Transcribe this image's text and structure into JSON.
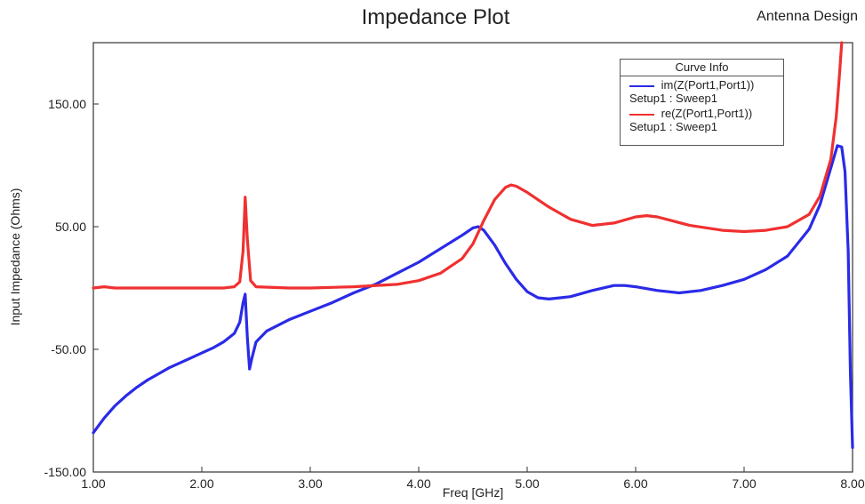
{
  "chart_data": {
    "type": "line",
    "title": "Impedance Plot",
    "subtitle": "Antenna Design",
    "xlabel": "Freq [GHz]",
    "ylabel": "Input Impedance (Ohms)",
    "xlim": [
      1.0,
      8.0
    ],
    "ylim": [
      -150,
      200
    ],
    "xticks": [
      "1.00",
      "2.00",
      "3.00",
      "4.00",
      "5.00",
      "6.00",
      "7.00",
      "8.00"
    ],
    "yticks": [
      "-150.00",
      "-50.00",
      "50.00",
      "150.00"
    ],
    "grid": false,
    "legend": {
      "title": "Curve Info",
      "placement": "top-right"
    },
    "series": [
      {
        "name": "im(Z(Port1,Port1))",
        "setup": "Setup1 : Sweep1",
        "color": "#2a2ae8",
        "points": [
          [
            1.0,
            -118
          ],
          [
            1.1,
            -106
          ],
          [
            1.2,
            -96
          ],
          [
            1.3,
            -88
          ],
          [
            1.4,
            -81
          ],
          [
            1.5,
            -75
          ],
          [
            1.6,
            -70
          ],
          [
            1.7,
            -65
          ],
          [
            1.8,
            -61
          ],
          [
            1.9,
            -57
          ],
          [
            2.0,
            -53
          ],
          [
            2.1,
            -49
          ],
          [
            2.2,
            -44
          ],
          [
            2.3,
            -37
          ],
          [
            2.35,
            -28
          ],
          [
            2.38,
            -12
          ],
          [
            2.4,
            -5
          ],
          [
            2.42,
            -40
          ],
          [
            2.44,
            -66
          ],
          [
            2.46,
            -58
          ],
          [
            2.5,
            -44
          ],
          [
            2.6,
            -35
          ],
          [
            2.8,
            -26
          ],
          [
            3.0,
            -19
          ],
          [
            3.2,
            -12
          ],
          [
            3.4,
            -4
          ],
          [
            3.6,
            3
          ],
          [
            3.8,
            12
          ],
          [
            4.0,
            21
          ],
          [
            4.2,
            32
          ],
          [
            4.4,
            43
          ],
          [
            4.5,
            49
          ],
          [
            4.55,
            50
          ],
          [
            4.6,
            47
          ],
          [
            4.7,
            35
          ],
          [
            4.8,
            20
          ],
          [
            4.9,
            7
          ],
          [
            5.0,
            -3
          ],
          [
            5.1,
            -8
          ],
          [
            5.2,
            -9
          ],
          [
            5.4,
            -7
          ],
          [
            5.6,
            -2
          ],
          [
            5.8,
            2
          ],
          [
            5.9,
            2
          ],
          [
            6.0,
            1
          ],
          [
            6.2,
            -2
          ],
          [
            6.4,
            -4
          ],
          [
            6.6,
            -2
          ],
          [
            6.8,
            2
          ],
          [
            7.0,
            7
          ],
          [
            7.2,
            15
          ],
          [
            7.4,
            26
          ],
          [
            7.6,
            48
          ],
          [
            7.7,
            68
          ],
          [
            7.8,
            98
          ],
          [
            7.86,
            116
          ],
          [
            7.9,
            115
          ],
          [
            7.93,
            95
          ],
          [
            7.96,
            30
          ],
          [
            7.98,
            -70
          ],
          [
            8.0,
            -130
          ]
        ]
      },
      {
        "name": "re(Z(Port1,Port1))",
        "setup": "Setup1 : Sweep1",
        "color": "#f03030",
        "points": [
          [
            1.0,
            0
          ],
          [
            1.1,
            1
          ],
          [
            1.2,
            0
          ],
          [
            1.4,
            0
          ],
          [
            1.6,
            0
          ],
          [
            1.8,
            0
          ],
          [
            2.0,
            0
          ],
          [
            2.2,
            0
          ],
          [
            2.3,
            1
          ],
          [
            2.35,
            5
          ],
          [
            2.38,
            30
          ],
          [
            2.4,
            74
          ],
          [
            2.42,
            40
          ],
          [
            2.45,
            6
          ],
          [
            2.5,
            1
          ],
          [
            2.8,
            0
          ],
          [
            3.0,
            0
          ],
          [
            3.4,
            1
          ],
          [
            3.8,
            3
          ],
          [
            4.0,
            6
          ],
          [
            4.2,
            12
          ],
          [
            4.4,
            24
          ],
          [
            4.5,
            36
          ],
          [
            4.6,
            55
          ],
          [
            4.7,
            72
          ],
          [
            4.8,
            82
          ],
          [
            4.85,
            84
          ],
          [
            4.9,
            83
          ],
          [
            5.0,
            78
          ],
          [
            5.2,
            66
          ],
          [
            5.4,
            56
          ],
          [
            5.6,
            51
          ],
          [
            5.8,
            53
          ],
          [
            6.0,
            58
          ],
          [
            6.1,
            59
          ],
          [
            6.2,
            58
          ],
          [
            6.5,
            51
          ],
          [
            6.8,
            47
          ],
          [
            7.0,
            46
          ],
          [
            7.2,
            47
          ],
          [
            7.4,
            50
          ],
          [
            7.6,
            60
          ],
          [
            7.7,
            75
          ],
          [
            7.8,
            105
          ],
          [
            7.85,
            140
          ],
          [
            7.88,
            175
          ],
          [
            7.9,
            200
          ]
        ]
      }
    ]
  }
}
